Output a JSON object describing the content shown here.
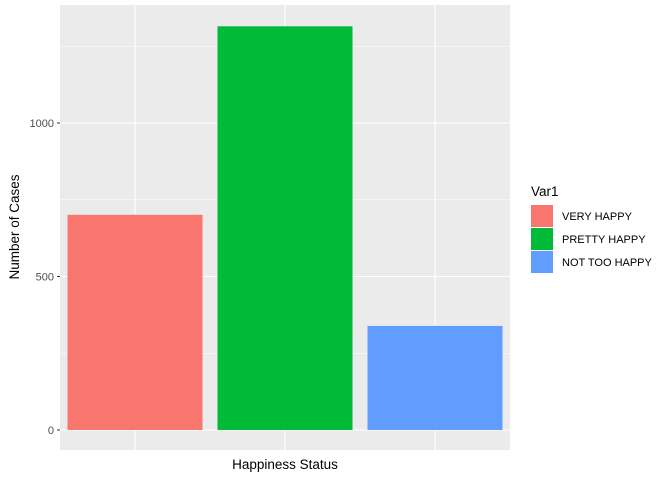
{
  "chart_data": {
    "type": "bar",
    "categories": [
      "VERY HAPPY",
      "PRETTY HAPPY",
      "NOT TOO HAPPY"
    ],
    "values": [
      701,
      1315,
      339
    ],
    "colors": [
      "#F8766D",
      "#00BA38",
      "#619CFF"
    ],
    "title": "",
    "xlabel": "Happiness Status",
    "ylabel": "Number of Cases",
    "ylim": [
      -66,
      1381
    ],
    "yticks": [
      0,
      500,
      1000
    ],
    "ytick_labels": [
      "0",
      "500",
      "1000"
    ],
    "x_tick_labels_shown": false,
    "grid": true,
    "panel_background": "#EBEBEB",
    "grid_color": "#FFFFFF",
    "legend": {
      "title": "Var1",
      "position": "right",
      "entries": [
        "VERY HAPPY",
        "PRETTY HAPPY",
        "NOT TOO HAPPY"
      ]
    }
  }
}
